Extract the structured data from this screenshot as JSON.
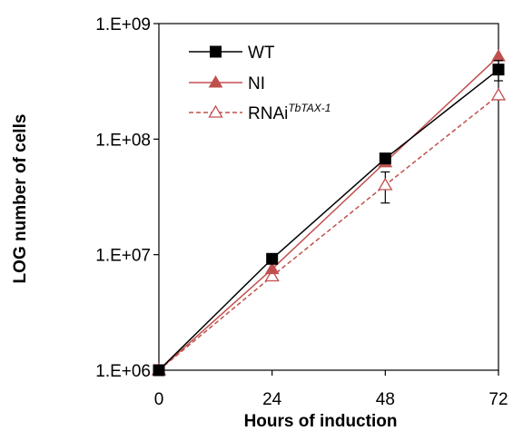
{
  "chart_data": {
    "type": "line",
    "xlabel": "Hours of induction",
    "ylabel": "LOG number of cells",
    "x": [
      0,
      24,
      48,
      72
    ],
    "x_tick_labels": [
      "0",
      "24",
      "48",
      "72"
    ],
    "y_scale": "log",
    "ylim": [
      1000000,
      1000000000
    ],
    "y_tick_values": [
      1000000,
      10000000,
      100000000,
      1000000000
    ],
    "y_tick_labels": [
      "1.E+06",
      "1.E+07",
      "1.E+08",
      "1.E+09"
    ],
    "grid": false,
    "legend_position": "top-left",
    "series": [
      {
        "name": "WT",
        "values": [
          1000000,
          9200000,
          68000000,
          400000000
        ],
        "marker": "square-filled",
        "line_style": "solid",
        "color": "#000000",
        "error": [
          null,
          null,
          null,
          80000000
        ]
      },
      {
        "name": "NI",
        "values": [
          1000000,
          7500000,
          63000000,
          520000000
        ],
        "marker": "triangle-filled",
        "line_style": "solid",
        "color": "#c0504d",
        "error": [
          null,
          null,
          null,
          null
        ]
      },
      {
        "name": "RNAi",
        "name_superscript": "TbTAX-1",
        "values": [
          1000000,
          6500000,
          40000000,
          240000000
        ],
        "marker": "triangle-open",
        "line_style": "dashed",
        "color": "#c0504d",
        "error": [
          null,
          null,
          12000000,
          null
        ]
      }
    ]
  }
}
